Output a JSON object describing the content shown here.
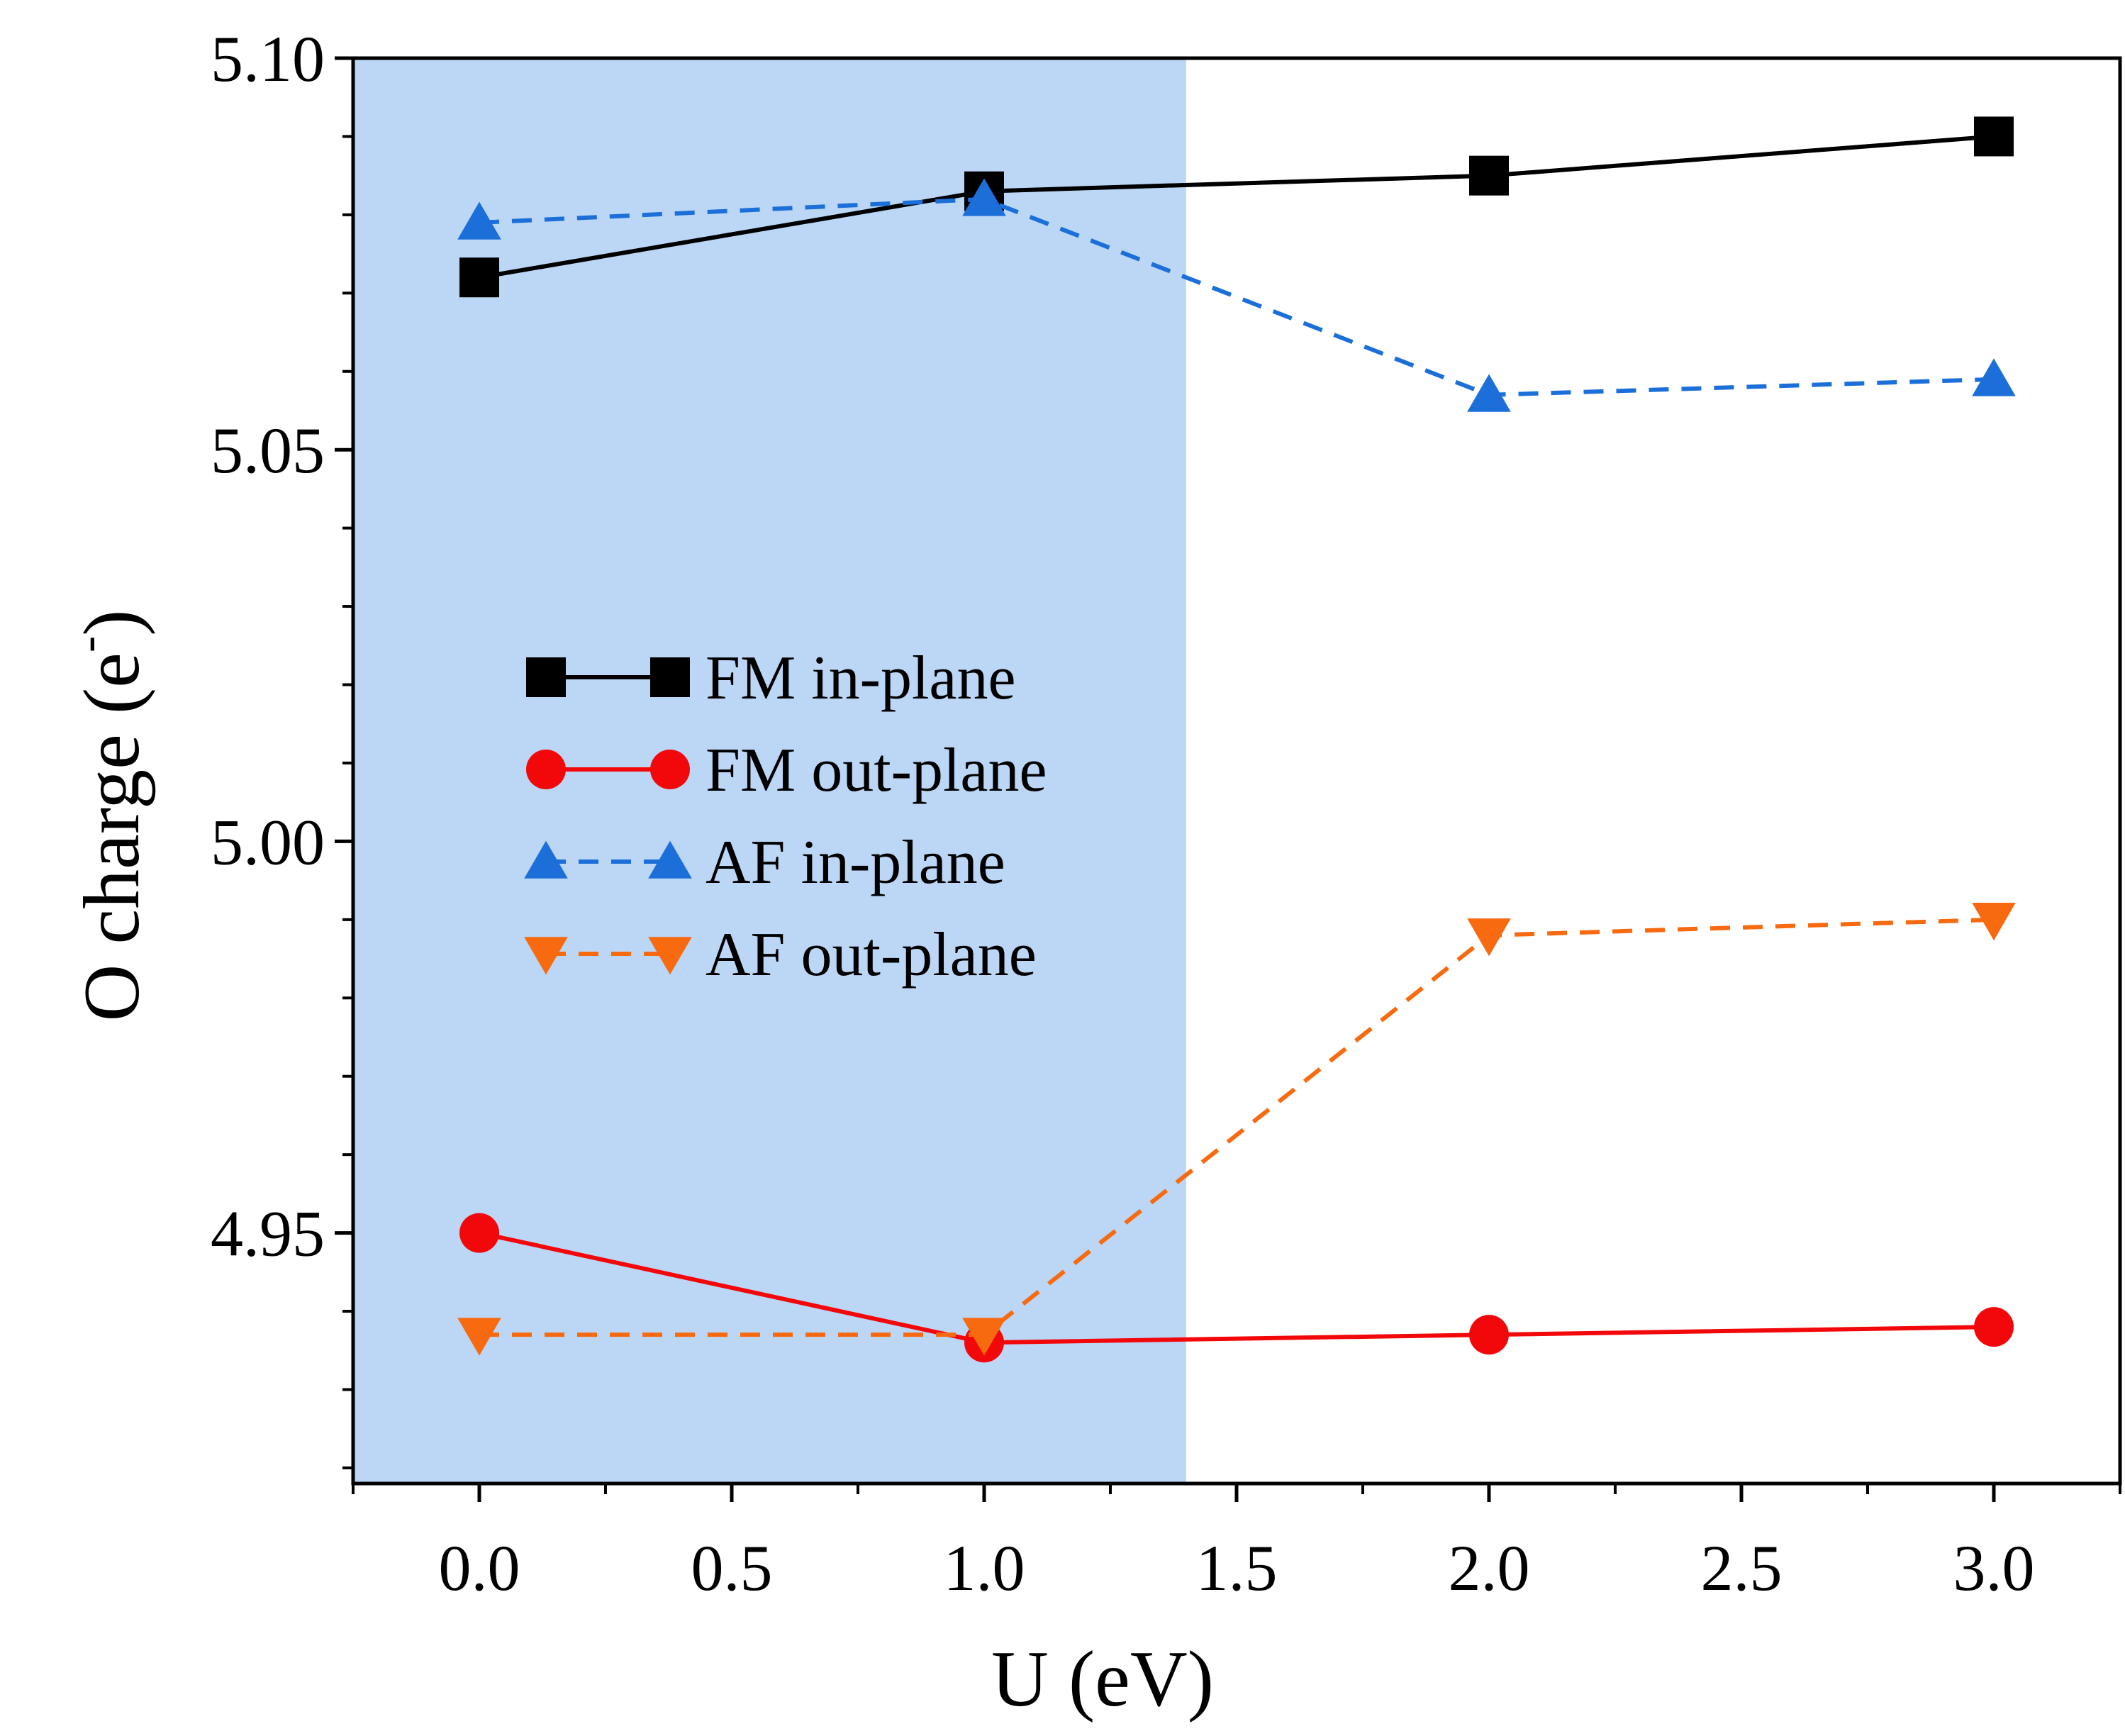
{
  "chart_data": {
    "type": "line",
    "title": "",
    "xlabel": "U (eV)",
    "ylabel_main": "O charge (e",
    "ylabel_sup": "-",
    "ylabel_close": ")",
    "xlim": [
      -0.25,
      3.25
    ],
    "ylim": [
      4.918,
      5.1
    ],
    "xticks": [
      0.0,
      0.5,
      1.0,
      1.5,
      2.0,
      2.5,
      3.0
    ],
    "xtick_labels": [
      "0.0",
      "0.5",
      "1.0",
      "1.5",
      "2.0",
      "2.5",
      "3.0"
    ],
    "yticks": [
      4.95,
      5.0,
      5.05,
      5.1
    ],
    "ytick_labels": [
      "4.95",
      "5.00",
      "5.05",
      "5.10"
    ],
    "shaded_region": {
      "x_from": -0.25,
      "x_to": 1.4,
      "color": "#bcd6f5"
    },
    "grid": false,
    "legend_position": "center-left",
    "series": [
      {
        "name": "FM in-plane",
        "x": [
          0,
          1,
          2,
          3
        ],
        "values": [
          5.072,
          5.083,
          5.085,
          5.09
        ],
        "color": "#000000",
        "marker": "square",
        "dashed": false
      },
      {
        "name": "FM out-plane",
        "x": [
          0,
          1,
          2,
          3
        ],
        "values": [
          4.95,
          4.936,
          4.937,
          4.938
        ],
        "color": "#f2080a",
        "marker": "circle",
        "dashed": false
      },
      {
        "name": "AF in-plane",
        "x": [
          0,
          1,
          2,
          3
        ],
        "values": [
          5.079,
          5.082,
          5.057,
          5.059
        ],
        "color": "#1c6fd9",
        "marker": "triangle-up",
        "dashed": true
      },
      {
        "name": "AF out-plane",
        "x": [
          0,
          1,
          2,
          3
        ],
        "values": [
          4.937,
          4.937,
          4.988,
          4.99
        ],
        "color": "#f86a10",
        "marker": "triangle-down",
        "dashed": true
      }
    ]
  }
}
